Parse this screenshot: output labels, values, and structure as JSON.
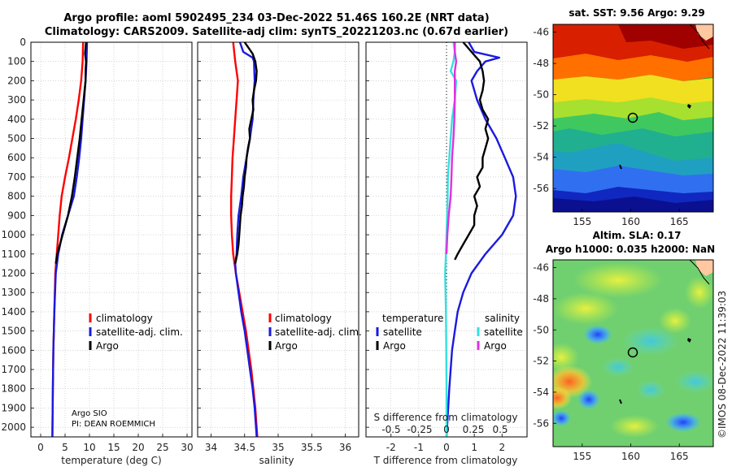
{
  "title": {
    "line1": "Argo profile: aoml 5902495_234 03-Dec-2022 51.46S 160.2E (NRT data)",
    "line2": "Climatology: CARS2009. Satellite-adj clim: synTS_20221203.nc (0.67d earlier)"
  },
  "colors": {
    "climatology": "#ff0000",
    "satellite_adj": "#1a1adf",
    "argo": "#000000",
    "sal_sat": "#33e0e0",
    "sal_argo": "#e030e0"
  },
  "chart_data": [
    {
      "type": "line",
      "panel": "temperature",
      "xlabel": "temperature (deg C)",
      "ylabel": "",
      "xlim": [
        -2,
        31
      ],
      "ylim": [
        2050,
        0
      ],
      "y_reversed": true,
      "xticks": [
        0,
        5,
        10,
        15,
        20,
        25,
        30
      ],
      "yticks": [
        0,
        100,
        200,
        300,
        400,
        500,
        600,
        700,
        800,
        900,
        1000,
        1100,
        1200,
        1300,
        1400,
        1500,
        1600,
        1700,
        1800,
        1900,
        2000
      ],
      "grid": true,
      "legend_placement": "lower-right",
      "annotation": [
        "Argo SIO",
        "PI: DEAN ROEMMICH"
      ],
      "series": [
        {
          "name": "climatology",
          "color": "#ff0000",
          "depth": [
            0,
            100,
            200,
            300,
            400,
            500,
            600,
            700,
            800,
            900,
            1000,
            1100,
            1200,
            1400,
            1600,
            1800,
            2050
          ],
          "values": [
            8.7,
            8.6,
            8.3,
            7.8,
            7.2,
            6.5,
            5.8,
            5.0,
            4.3,
            3.9,
            3.6,
            3.3,
            3.0,
            2.8,
            2.6,
            2.5,
            2.4
          ]
        },
        {
          "name": "satellite-adj. clim.",
          "color": "#1a1adf",
          "depth": [
            0,
            100,
            200,
            300,
            400,
            500,
            600,
            700,
            800,
            900,
            1000,
            1100,
            1200,
            1400,
            1600,
            1800,
            2050
          ],
          "values": [
            9.5,
            9.4,
            9.2,
            8.9,
            8.6,
            8.3,
            7.9,
            7.4,
            6.8,
            5.6,
            4.4,
            3.6,
            3.1,
            2.8,
            2.6,
            2.5,
            2.4
          ]
        },
        {
          "name": "Argo",
          "color": "#000000",
          "depth": [
            0,
            60,
            100,
            150,
            200,
            300,
            400,
            500,
            600,
            700,
            800,
            900,
            1000,
            1100,
            1150
          ],
          "values": [
            9.3,
            9.1,
            9.3,
            9.2,
            9.2,
            8.8,
            8.4,
            8.0,
            7.5,
            7.0,
            6.4,
            5.6,
            4.5,
            3.4,
            3.1
          ]
        }
      ]
    },
    {
      "type": "line",
      "panel": "salinity",
      "xlabel": "salinity",
      "ylabel": "",
      "xlim": [
        33.8,
        36.2
      ],
      "ylim": [
        2050,
        0
      ],
      "y_reversed": true,
      "xticks": [
        34,
        34.5,
        35,
        35.5,
        36
      ],
      "grid": true,
      "legend_placement": "lower-right",
      "series": [
        {
          "name": "climatology",
          "color": "#ff0000",
          "depth": [
            0,
            100,
            200,
            300,
            400,
            500,
            600,
            700,
            800,
            900,
            1000,
            1100,
            1200,
            1300,
            1400,
            1500,
            1600,
            1700,
            1800,
            1900,
            2050
          ],
          "values": [
            34.33,
            34.36,
            34.4,
            34.38,
            34.36,
            34.34,
            34.32,
            34.31,
            34.3,
            34.3,
            34.31,
            34.33,
            34.37,
            34.42,
            34.47,
            34.52,
            34.56,
            34.6,
            34.63,
            34.66,
            34.69
          ]
        },
        {
          "name": "satellite-adj. clim.",
          "color": "#1a1adf",
          "depth": [
            0,
            50,
            80,
            100,
            200,
            300,
            400,
            500,
            600,
            700,
            800,
            900,
            1000,
            1100,
            1150,
            1200,
            1300,
            1400,
            1500,
            1600,
            1700,
            1800,
            1900,
            2050
          ],
          "values": [
            34.43,
            34.48,
            34.62,
            34.64,
            34.65,
            34.63,
            34.62,
            34.58,
            34.53,
            34.48,
            34.45,
            34.41,
            34.39,
            34.38,
            34.36,
            34.37,
            34.41,
            34.45,
            34.5,
            34.54,
            34.58,
            34.62,
            34.65,
            34.68
          ]
        },
        {
          "name": "Argo",
          "color": "#000000",
          "depth": [
            0,
            30,
            60,
            100,
            150,
            200,
            250,
            300,
            350,
            400,
            450,
            500,
            550,
            600,
            650,
            700,
            750,
            800,
            850,
            900,
            950,
            1000,
            1050,
            1100,
            1150
          ],
          "values": [
            34.5,
            34.56,
            34.62,
            34.66,
            34.68,
            34.67,
            34.64,
            34.62,
            34.63,
            34.6,
            34.57,
            34.58,
            34.55,
            34.53,
            34.52,
            34.5,
            34.49,
            34.47,
            34.46,
            34.44,
            34.43,
            34.42,
            34.41,
            34.39,
            34.36
          ]
        }
      ]
    },
    {
      "type": "line",
      "panel": "difference from climatology",
      "xlabel": "T difference from climatology",
      "xlabel_top": "S difference from climatology",
      "xlim": [
        -2.9,
        2.9
      ],
      "ylim": [
        2050,
        0
      ],
      "y_reversed": true,
      "xticks": [
        -2,
        -1,
        0,
        1,
        2
      ],
      "xticks_salinity": [
        "-0.5",
        "-0.25",
        "0",
        "0.25",
        "0.5"
      ],
      "grid": true,
      "legend_placement": "lower",
      "legend_headers": [
        "temperature",
        "salinity"
      ],
      "series": [
        {
          "name": "temperature satellite",
          "color": "#1a1adf",
          "depth": [
            0,
            50,
            80,
            100,
            150,
            200,
            300,
            400,
            500,
            600,
            700,
            800,
            900,
            1000,
            1100,
            1200,
            1300,
            1400,
            1500,
            1600,
            1800,
            2050
          ],
          "values": [
            0.8,
            1.0,
            1.9,
            1.4,
            1.1,
            0.9,
            1.1,
            1.4,
            1.8,
            2.1,
            2.4,
            2.5,
            2.4,
            2.0,
            1.4,
            0.9,
            0.6,
            0.4,
            0.3,
            0.2,
            0.1,
            0.0
          ]
        },
        {
          "name": "temperature Argo",
          "color": "#000000",
          "depth": [
            0,
            50,
            100,
            150,
            200,
            250,
            300,
            350,
            400,
            450,
            500,
            550,
            600,
            650,
            700,
            750,
            800,
            850,
            900,
            950,
            1000,
            1050,
            1100,
            1130
          ],
          "values": [
            0.6,
            0.9,
            1.2,
            1.3,
            1.35,
            1.3,
            1.2,
            1.3,
            1.5,
            1.4,
            1.5,
            1.4,
            1.3,
            1.3,
            1.1,
            1.2,
            1.0,
            1.1,
            1.0,
            1.0,
            0.8,
            0.6,
            0.4,
            0.3
          ]
        },
        {
          "name": "salinity satellite",
          "color": "#33e0e0",
          "depth": [
            0,
            50,
            100,
            150,
            200,
            300,
            400,
            500,
            600,
            700,
            800,
            900,
            1000,
            1100,
            1200,
            1400,
            1600,
            1800,
            2050
          ],
          "values": [
            0.25,
            0.3,
            0.25,
            0.15,
            0.35,
            0.3,
            0.2,
            0.15,
            0.1,
            0.05,
            0.04,
            0.02,
            0.0,
            -0.02,
            -0.05,
            -0.02,
            -0.01,
            0.0,
            0.0
          ]
        },
        {
          "name": "salinity Argo",
          "color": "#e030e0",
          "depth": [
            0,
            50,
            100,
            150,
            200,
            300,
            400,
            500,
            600,
            700,
            800,
            900,
            1000,
            1100
          ],
          "values": [
            0.3,
            0.3,
            0.35,
            0.3,
            0.3,
            0.3,
            0.28,
            0.25,
            0.2,
            0.18,
            0.15,
            0.08,
            0.03,
            0.0
          ]
        }
      ]
    },
    {
      "type": "heatmap",
      "panel": "sat. SST map",
      "title": "sat. SST: 9.56 Argo: 9.29",
      "xticks": [
        155,
        160,
        165
      ],
      "yticks": [
        -46,
        -48,
        -50,
        -52,
        -54,
        -56
      ],
      "xlim": [
        152,
        168.5
      ],
      "ylim": [
        -57.5,
        -45.5
      ],
      "argo_position": {
        "lon": 160.2,
        "lat": -51.46
      }
    },
    {
      "type": "heatmap",
      "panel": "altimetry SLA map",
      "title_line1": "Altim. SLA: 0.17",
      "title_line2": "Argo h1000: 0.035 h2000: NaN",
      "xticks": [
        155,
        160,
        165
      ],
      "yticks": [
        -46,
        -48,
        -50,
        -52,
        -54,
        -56
      ],
      "xlim": [
        152,
        168.5
      ],
      "ylim": [
        -57.5,
        -45.5
      ],
      "argo_position": {
        "lon": 160.2,
        "lat": -51.46
      }
    }
  ],
  "copyright": "©IMOS 08-Dec-2022 11:39:03"
}
